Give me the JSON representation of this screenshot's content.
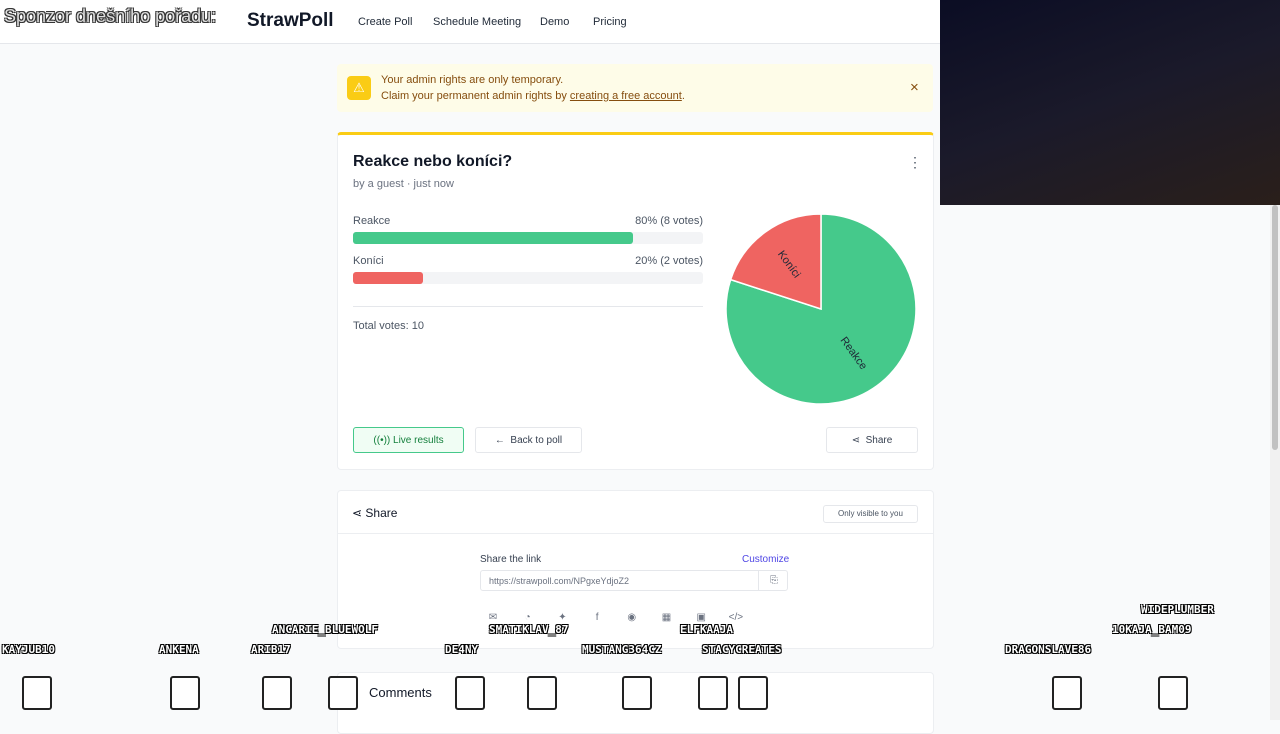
{
  "overlay": {
    "sponsor": "Sponzor dnešního pořadu:",
    "usernames": [
      "KAYJUB10",
      "ANKENA",
      "ARIB17",
      "ANCARIE_BLUEWOLF",
      "DE4NY",
      "SMATIKLAV_87",
      "MUSTANG364CZ",
      "ELFKAAJA",
      "STACYCREATES",
      "DRAGONSLAVE86",
      "10KAJA_BAM09",
      "WIDEPLUMBER"
    ]
  },
  "header": {
    "logo": "StrawPoll",
    "nav": [
      "Create Poll",
      "Schedule Meeting",
      "Demo",
      "Pricing"
    ]
  },
  "alert": {
    "line1": "Your admin rights are only temporary.",
    "line2": "Claim your permanent admin rights by ",
    "link": "creating a free account",
    "end": "."
  },
  "poll": {
    "title": "Reakce nebo koníci?",
    "byline": "by a guest · just now",
    "options": [
      {
        "label": "Reakce",
        "percent": 80,
        "result_label": "80% (8 votes)",
        "votes": 8,
        "color": "#45c98b"
      },
      {
        "label": "Koníci",
        "percent": 20,
        "result_label": "20% (2 votes)",
        "votes": 2,
        "color": "#ef6461"
      }
    ],
    "total_label": "Total votes: 10",
    "buttons": [
      "Live results",
      "Back to poll",
      "Share"
    ]
  },
  "share": {
    "title": "Share",
    "visibility": "Only visible to you",
    "link_label": "Share the link",
    "customize": "Customize",
    "url": "https://strawpoll.com/NPgxeYdjoZ2"
  },
  "comments": {
    "title": "Comments"
  }
}
